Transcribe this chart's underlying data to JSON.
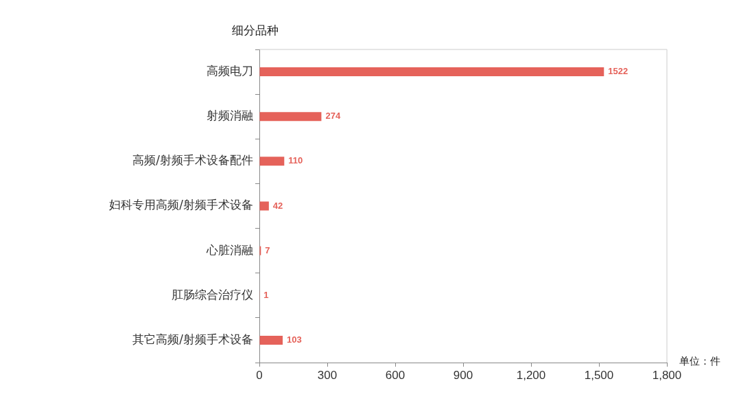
{
  "chart_data": {
    "type": "bar",
    "orientation": "horizontal",
    "ylabel": "细分品种",
    "xlabel": "单位：件",
    "categories": [
      "高频电刀",
      "射频消融",
      "高频/射频手术设备配件",
      "妇科专用高频/射频手术设备",
      "心脏消融",
      "肛肠综合治疗仪",
      "其它高频/射频手术设备"
    ],
    "values": [
      1522,
      274,
      110,
      42,
      7,
      1,
      103
    ],
    "color": "#e5625a",
    "xlim": [
      0,
      1800
    ],
    "xticks": [
      0,
      300,
      600,
      900,
      {
        "value": 1200,
        "label": "1,200"
      },
      {
        "value": 1500,
        "label": "1,500"
      },
      {
        "value": 1800,
        "label": "1,800"
      }
    ],
    "grid": false,
    "data_labels": true
  }
}
